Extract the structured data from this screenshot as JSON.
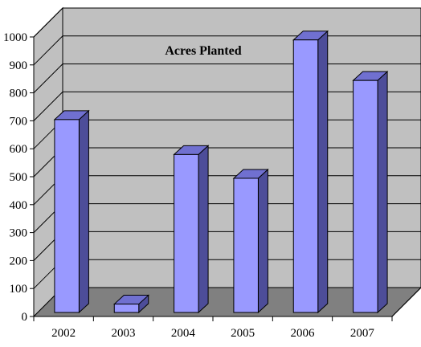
{
  "chart_data": {
    "type": "bar",
    "title": "Acres Planted",
    "categories": [
      "2002",
      "2003",
      "2004",
      "2005",
      "2006",
      "2007"
    ],
    "series": [
      {
        "values": [
          690,
          30,
          565,
          480,
          975,
          830
        ]
      }
    ],
    "ylim": [
      0,
      1000
    ],
    "yticks": [
      "0",
      "100",
      "200",
      "300",
      "400",
      "500",
      "600",
      "700",
      "800",
      "900",
      "1000"
    ],
    "xlabel": "",
    "ylabel": "",
    "grid": true,
    "style": "3d",
    "colors": {
      "bar_front": "#9999ff",
      "bar_side": "#4d4d99",
      "bar_top": "#7070d0",
      "wall": "#c0c0c0",
      "floor": "#808080",
      "grid": "#000000"
    }
  }
}
